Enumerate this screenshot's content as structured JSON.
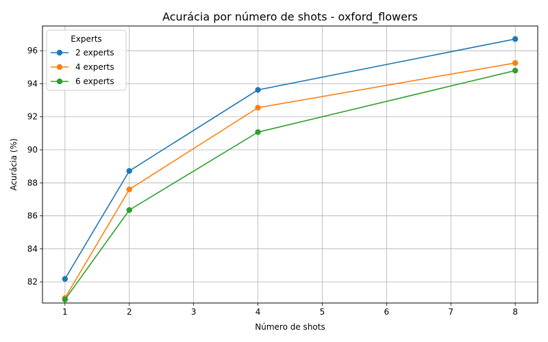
{
  "chart_data": {
    "type": "line",
    "title": "Acurácia por número de shots - oxford_flowers",
    "xlabel": "Número de shots",
    "ylabel": "Acurácia (%)",
    "xlim": [
      0.65,
      8.35
    ],
    "ylim": [
      80.72,
      97.5
    ],
    "xticks": [
      1,
      2,
      3,
      4,
      5,
      6,
      7,
      8
    ],
    "yticks": [
      82,
      84,
      86,
      88,
      90,
      92,
      94,
      96
    ],
    "grid": true,
    "legend": {
      "title": "Experts",
      "position": "top-left"
    },
    "x": [
      1,
      2,
      4,
      8
    ],
    "series": [
      {
        "name": "2 experts",
        "color": "#1f77b4",
        "values": [
          82.18,
          88.72,
          93.63,
          96.71
        ]
      },
      {
        "name": "4 experts",
        "color": "#ff7f0e",
        "values": [
          81.02,
          87.6,
          92.55,
          95.26
        ]
      },
      {
        "name": "6 experts",
        "color": "#2ca02c",
        "values": [
          80.93,
          86.35,
          91.07,
          94.8
        ]
      }
    ]
  }
}
